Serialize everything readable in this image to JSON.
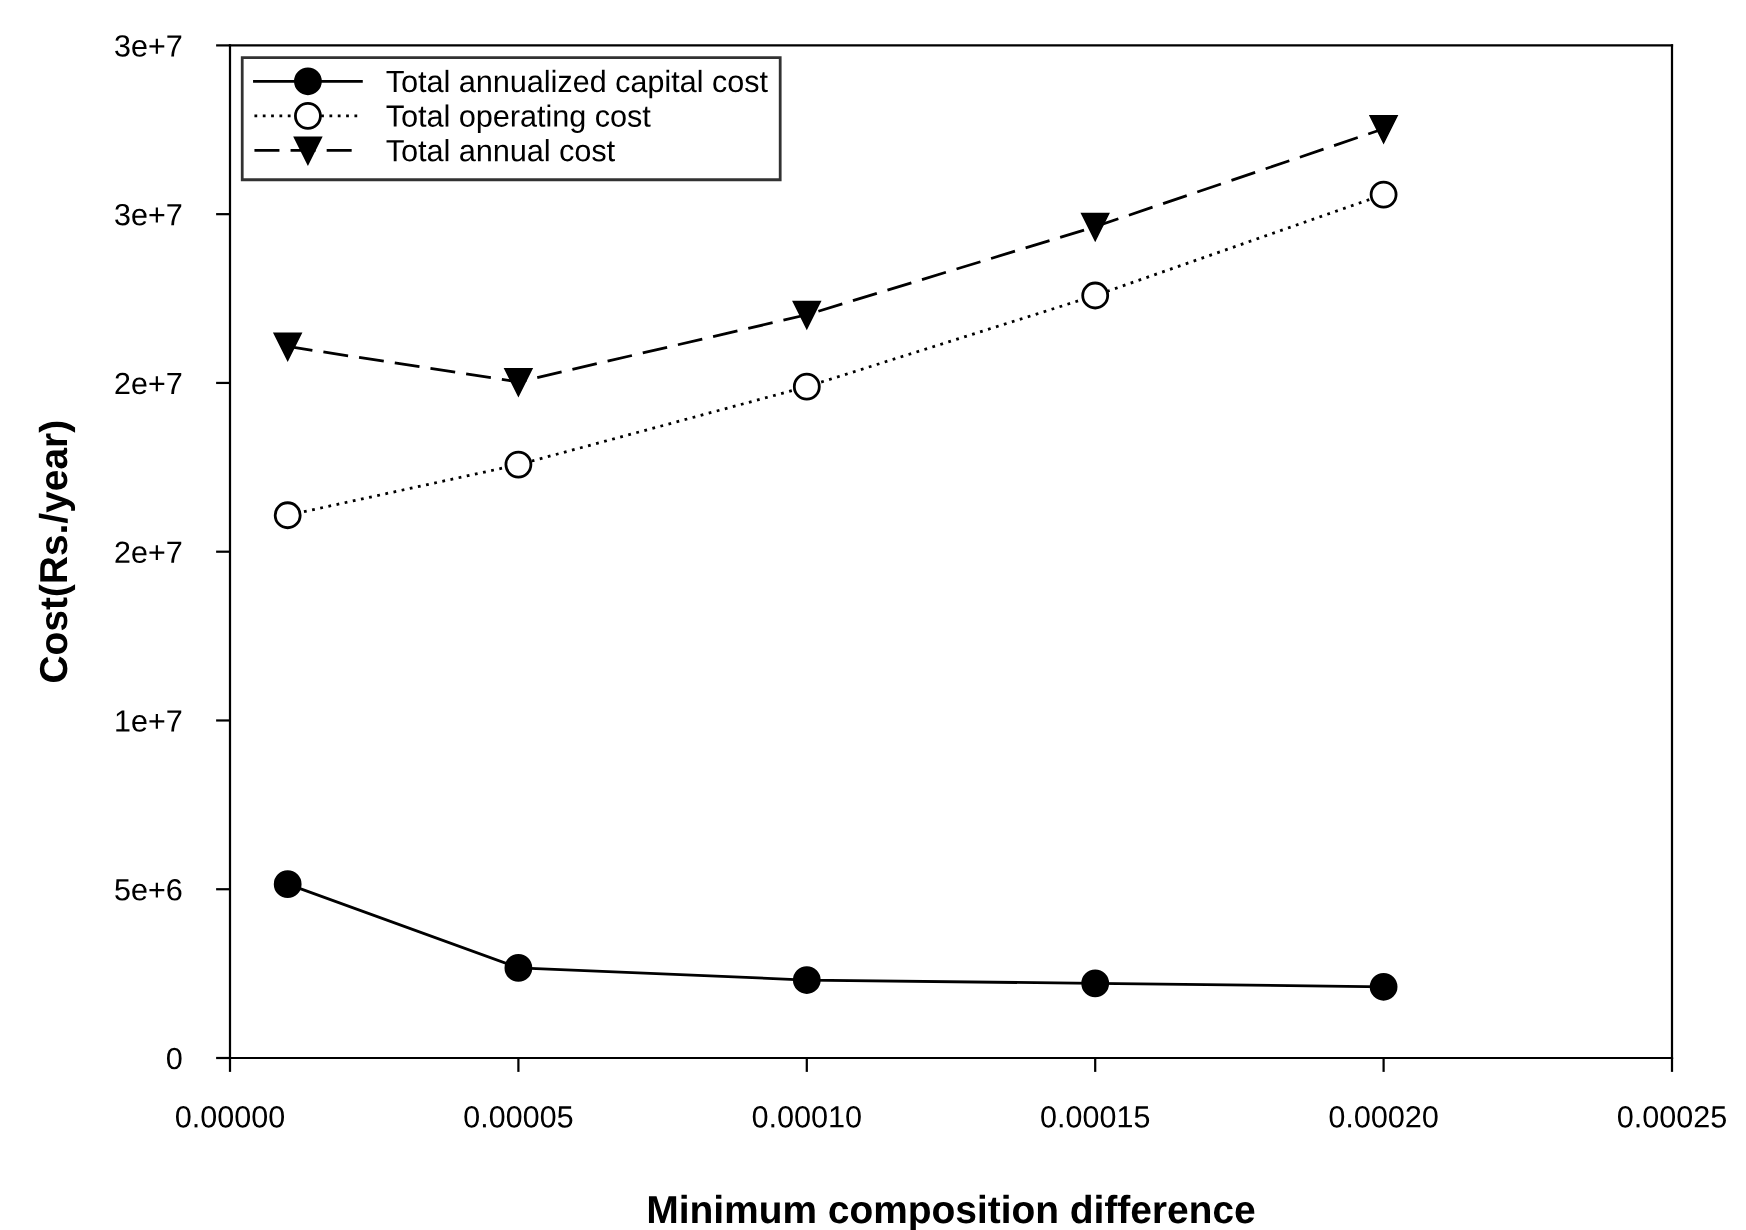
{
  "chart_data": {
    "type": "line",
    "xlabel": "Minimum composition difference",
    "ylabel": "Cost(Rs./year)",
    "x": [
      1e-05,
      5e-05,
      0.0001,
      0.00015,
      0.0002
    ],
    "series": [
      {
        "name": "Total annualized capital cost",
        "color": "#000000",
        "marker": "circle",
        "line_style": "solid",
        "values": [
          5150000,
          2670000,
          2310000,
          2210000,
          2110000
        ]
      },
      {
        "name": "Total operating cost",
        "color": "#000000",
        "marker": "circle",
        "line_style": "dotted",
        "values": [
          16080000,
          17580000,
          19890000,
          22590000,
          25580000
        ]
      },
      {
        "name": "Total annual cost",
        "color": "#000000",
        "marker": "triangle",
        "line_style": "dashed",
        "values": [
          21080000,
          20030000,
          22020000,
          24630000,
          27530000
        ]
      }
    ],
    "xlim": [
      0,
      0.00025
    ],
    "xticks": [
      {
        "value": 0,
        "label": "0.00000"
      },
      {
        "value": 5e-05,
        "label": "0.00005"
      },
      {
        "value": 0.0001,
        "label": "0.00010"
      },
      {
        "value": 0.00015,
        "label": "0.00015"
      },
      {
        "value": 0.0002,
        "label": "0.00020"
      },
      {
        "value": 0.00025,
        "label": "0.00025"
      }
    ],
    "ylim": [
      0,
      30000000
    ],
    "yticks": [
      0,
      {
        "value": 5000000,
        "label": "5e+6"
      },
      {
        "value": 10000000,
        "label": "1e+7"
      },
      {
        "value": 15000000,
        "label": "2e+7"
      },
      {
        "value": 20000000,
        "label": "2e+7"
      },
      {
        "value": 25000000,
        "label": "3e+7"
      },
      {
        "value": 30000000,
        "label": "3e+7"
      }
    ],
    "grid": false,
    "legend": "top left"
  }
}
